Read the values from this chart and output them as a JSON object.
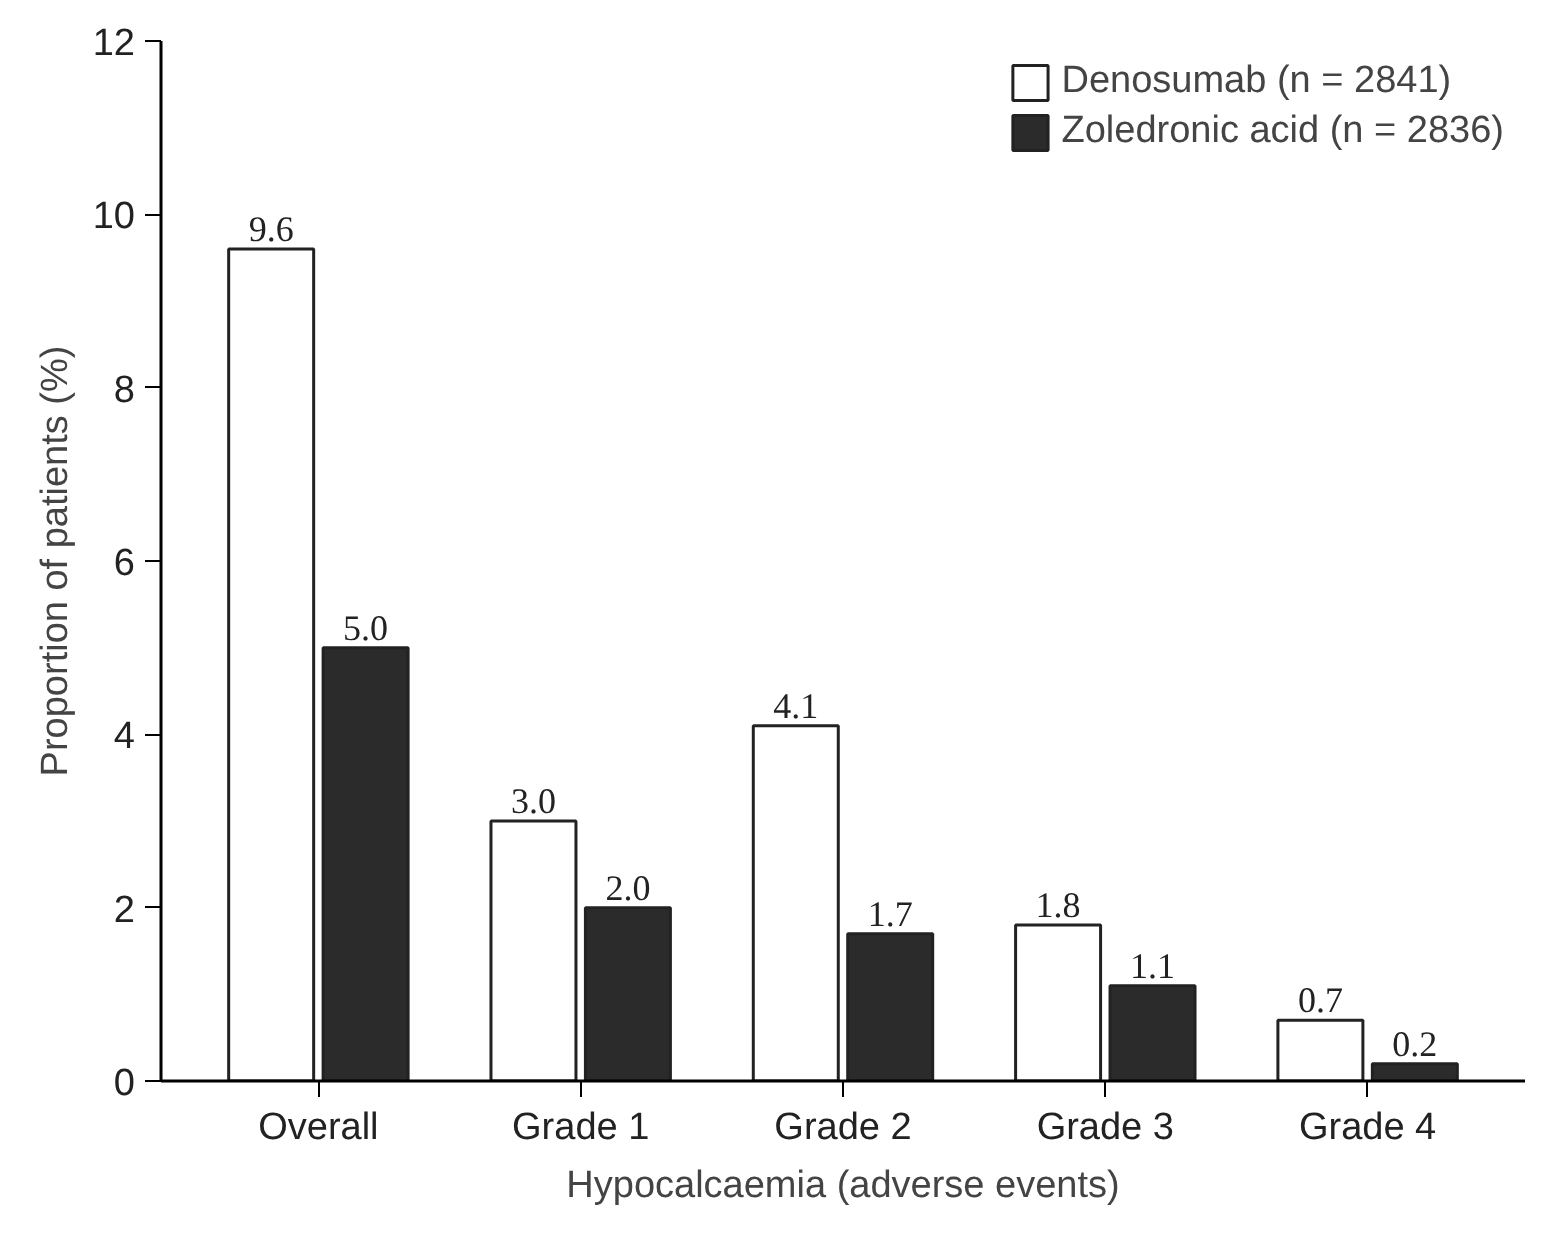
{
  "chart_data": {
    "type": "bar",
    "xlabel": "Hypocalcaemia (adverse events)",
    "ylabel": "Proportion of patients (%)",
    "categories": [
      "Overall",
      "Grade 1",
      "Grade 2",
      "Grade 3",
      "Grade 4"
    ],
    "series": [
      {
        "name": "Denosumab (n = 2841)",
        "color": "#ffffff",
        "values": [
          9.6,
          3.0,
          4.1,
          1.8,
          0.7
        ]
      },
      {
        "name": "Zoledronic acid (n = 2836)",
        "color": "#2b2b2b",
        "values": [
          5.0,
          2.0,
          1.7,
          1.1,
          0.2
        ]
      }
    ],
    "value_labels": [
      [
        "9.6",
        "3.0",
        "4.1",
        "1.8",
        "0.7"
      ],
      [
        "5.0",
        "2.0",
        "1.7",
        "1.1",
        "0.2"
      ]
    ],
    "ylim": [
      0,
      12
    ],
    "yticks": [
      0,
      2,
      4,
      6,
      8,
      10,
      12
    ],
    "grid": false,
    "legend": "top right"
  }
}
